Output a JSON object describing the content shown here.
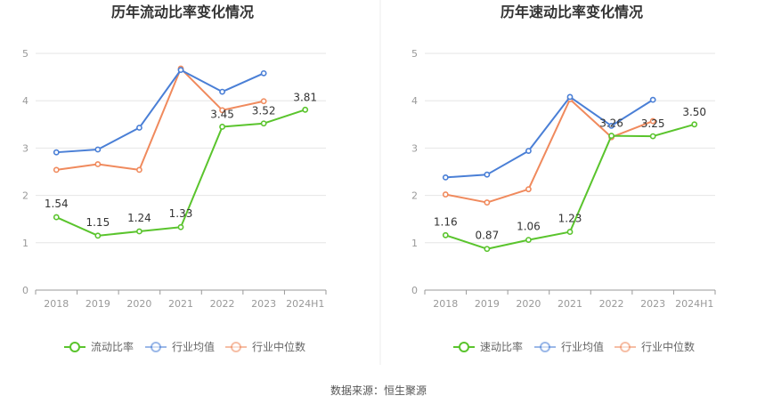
{
  "source_text": "数据来源：恒生聚源",
  "chart_data": [
    {
      "type": "line",
      "title": "历年流动比率变化情况",
      "categories": [
        "2018",
        "2019",
        "2020",
        "2021",
        "2022",
        "2023",
        "2024H1"
      ],
      "ylim": [
        0,
        5
      ],
      "yticks": [
        0,
        1,
        2,
        3,
        4,
        5
      ],
      "grid": true,
      "legend_position": "bottom",
      "series": [
        {
          "name": "流动比率",
          "color": "#5ac42d",
          "values": [
            1.54,
            1.15,
            1.24,
            1.33,
            3.45,
            3.52,
            3.81
          ],
          "labels": [
            "1.54",
            "1.15",
            "1.24",
            "1.33",
            "3.45",
            "3.52",
            "3.81"
          ]
        },
        {
          "name": "行业均值",
          "color": "#4a7fd6",
          "values": [
            2.91,
            2.97,
            3.43,
            4.65,
            4.19,
            4.58,
            null
          ]
        },
        {
          "name": "行业中位数",
          "color": "#f08a5d",
          "values": [
            2.54,
            2.66,
            2.54,
            4.68,
            3.8,
            3.99,
            null
          ]
        }
      ]
    },
    {
      "type": "line",
      "title": "历年速动比率变化情况",
      "categories": [
        "2018",
        "2019",
        "2020",
        "2021",
        "2022",
        "2023",
        "2024H1"
      ],
      "ylim": [
        0,
        5
      ],
      "yticks": [
        0,
        1,
        2,
        3,
        4,
        5
      ],
      "grid": true,
      "legend_position": "bottom",
      "series": [
        {
          "name": "速动比率",
          "color": "#5ac42d",
          "values": [
            1.16,
            0.87,
            1.06,
            1.23,
            3.26,
            3.25,
            3.5
          ],
          "labels": [
            "1.16",
            "0.87",
            "1.06",
            "1.23",
            "3.26",
            "3.25",
            "3.50"
          ]
        },
        {
          "name": "行业均值",
          "color": "#4a7fd6",
          "values": [
            2.38,
            2.44,
            2.94,
            4.08,
            3.47,
            4.02,
            null
          ]
        },
        {
          "name": "行业中位数",
          "color": "#f08a5d",
          "values": [
            2.02,
            1.85,
            2.13,
            4.03,
            3.23,
            3.57,
            null
          ]
        }
      ]
    }
  ]
}
